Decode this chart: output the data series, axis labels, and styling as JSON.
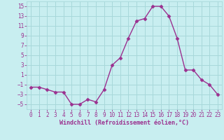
{
  "x": [
    0,
    1,
    2,
    3,
    4,
    5,
    6,
    7,
    8,
    9,
    10,
    11,
    12,
    13,
    14,
    15,
    16,
    17,
    18,
    19,
    20,
    21,
    22,
    23
  ],
  "y": [
    -1.5,
    -1.5,
    -2,
    -2.5,
    -2.5,
    -5,
    -5,
    -4,
    -4.5,
    -2,
    3,
    4.5,
    8.5,
    12,
    12.5,
    15,
    15,
    13,
    8.5,
    2,
    2,
    0,
    -1,
    -3
  ],
  "line_color": "#9b308f",
  "marker": "D",
  "marker_size": 2.5,
  "bg_color": "#c8eef0",
  "grid_color": "#a8d8da",
  "xlabel": "Windchill (Refroidissement éolien,°C)",
  "xlabel_color": "#9b308f",
  "tick_color": "#9b308f",
  "ylim": [
    -6,
    16
  ],
  "yticks": [
    -5,
    -3,
    -1,
    1,
    3,
    5,
    7,
    9,
    11,
    13,
    15
  ],
  "xlim": [
    -0.5,
    23.5
  ],
  "xticks": [
    0,
    1,
    2,
    3,
    4,
    5,
    6,
    7,
    8,
    9,
    10,
    11,
    12,
    13,
    14,
    15,
    16,
    17,
    18,
    19,
    20,
    21,
    22,
    23
  ],
  "ytick_labels": [
    "-5",
    "-3",
    "-1",
    "1",
    "3",
    "5",
    "7",
    "9",
    "11",
    "13",
    "15"
  ]
}
